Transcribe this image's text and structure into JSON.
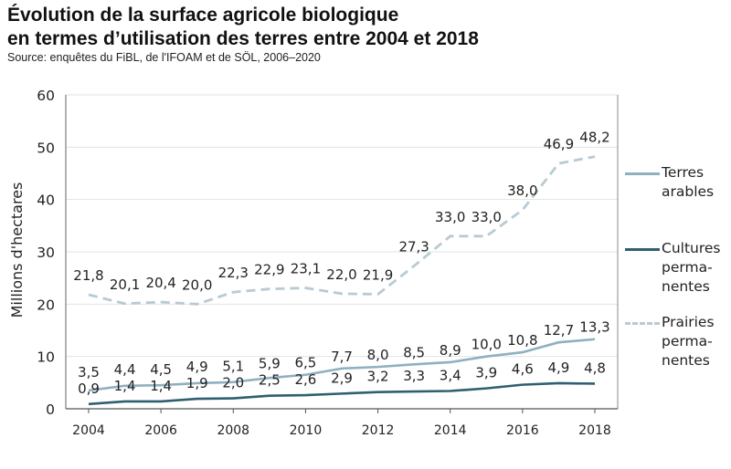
{
  "header": {
    "title_line1": "Évolution de la surface agricole biologique",
    "title_line2": "en termes d’utilisation des terres entre 2004 et 2018",
    "source": "Source: enquêtes du FiBL, de l'IFOAM et de SÖL, 2006–2020"
  },
  "chart_data": {
    "type": "line",
    "ylabel": "Millions d'hectares",
    "xlabel": "",
    "ylim": [
      0,
      60
    ],
    "xlim": [
      2004,
      2018
    ],
    "yticks": [
      "0",
      "10",
      "20",
      "30",
      "40",
      "50",
      "60"
    ],
    "xticks": [
      "2004",
      "2006",
      "2008",
      "2010",
      "2012",
      "2014",
      "2016",
      "2018"
    ],
    "x": [
      2004,
      2005,
      2006,
      2007,
      2008,
      2009,
      2010,
      2011,
      2012,
      2013,
      2014,
      2015,
      2016,
      2017,
      2018
    ],
    "grid": "horizontal",
    "legend_position": "right",
    "series": [
      {
        "name": "Terres arables",
        "color": "#8fb0bf",
        "style": "solid",
        "values": [
          3.5,
          4.4,
          4.5,
          4.9,
          5.1,
          5.9,
          6.5,
          7.7,
          8.0,
          8.5,
          8.9,
          10.0,
          10.8,
          12.7,
          13.3
        ],
        "labels": [
          "3,5",
          "4,4",
          "4,5",
          "4,9",
          "5,1",
          "5,9",
          "6,5",
          "7,7",
          "8,0",
          "8,5",
          "8,9",
          "10,0",
          "10,8",
          "12,7",
          "13,3"
        ]
      },
      {
        "name": "Cultures permanentes",
        "color": "#2f5f70",
        "style": "solid",
        "values": [
          0.9,
          1.4,
          1.4,
          1.9,
          2.0,
          2.5,
          2.6,
          2.9,
          3.2,
          3.3,
          3.4,
          3.9,
          4.6,
          4.9,
          4.8
        ],
        "labels": [
          "0,9",
          "1,4",
          "1,4",
          "1,9",
          "2,0",
          "2,5",
          "2,6",
          "2,9",
          "3,2",
          "3,3",
          "3,4",
          "3,9",
          "4,6",
          "4,9",
          "4,8"
        ]
      },
      {
        "name": "Prairies permanentes",
        "color": "#b8cad3",
        "style": "dashed",
        "values": [
          21.8,
          20.1,
          20.4,
          20.0,
          22.3,
          22.9,
          23.1,
          22.0,
          21.9,
          27.3,
          33.0,
          33.0,
          38.0,
          46.9,
          48.2
        ],
        "labels": [
          "21,8",
          "20,1",
          "20,4",
          "20,0",
          "22,3",
          "22,9",
          "23,1",
          "22,0",
          "21,9",
          "27,3",
          "33,0",
          "33,0",
          "38,0",
          "46,9",
          "48,2"
        ]
      }
    ]
  },
  "legend": {
    "items": [
      {
        "line1": "Terres",
        "line2": "arables",
        "line3": ""
      },
      {
        "line1": "Cultures",
        "line2": "perma-",
        "line3": "nentes"
      },
      {
        "line1": "Prairies",
        "line2": "perma-",
        "line3": "nentes"
      }
    ]
  }
}
